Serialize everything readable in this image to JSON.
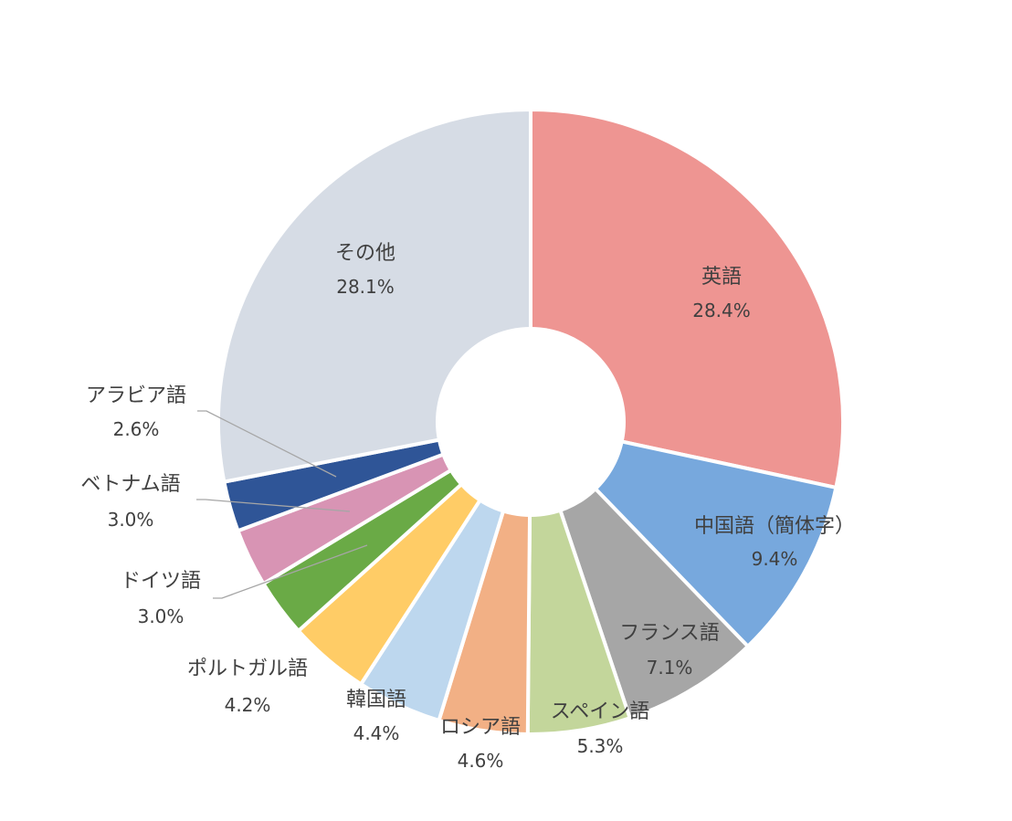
{
  "chart_data": {
    "type": "pie",
    "variant": "donut",
    "title": "",
    "categories": [
      "英語",
      "中国語（簡体字）",
      "フランス語",
      "スペイン語",
      "ロシア語",
      "韓国語",
      "ポルトガル語",
      "ドイツ語",
      "ベトナム語",
      "アラビア語",
      "その他"
    ],
    "values": [
      28.4,
      9.4,
      7.1,
      5.3,
      4.6,
      4.4,
      4.2,
      3.0,
      3.0,
      2.6,
      28.1
    ],
    "value_labels": [
      "28.4%",
      "9.4%",
      "7.1%",
      "5.3%",
      "4.6%",
      "4.4%",
      "4.2%",
      "3.0%",
      "3.0%",
      "2.6%",
      "28.1%"
    ],
    "colors": [
      "#EE9592",
      "#77A8DD",
      "#A6A6A6",
      "#C3D69B",
      "#F2B085",
      "#BDD7EE",
      "#FFCC66",
      "#6AAA46",
      "#D894B4",
      "#2F5597",
      "#D6DCE5"
    ],
    "start_angle": "12 o'clock",
    "direction": "clockwise",
    "leader_lines": [
      "ドイツ語",
      "ベトナム語",
      "アラビア語"
    ],
    "legend": "none"
  }
}
